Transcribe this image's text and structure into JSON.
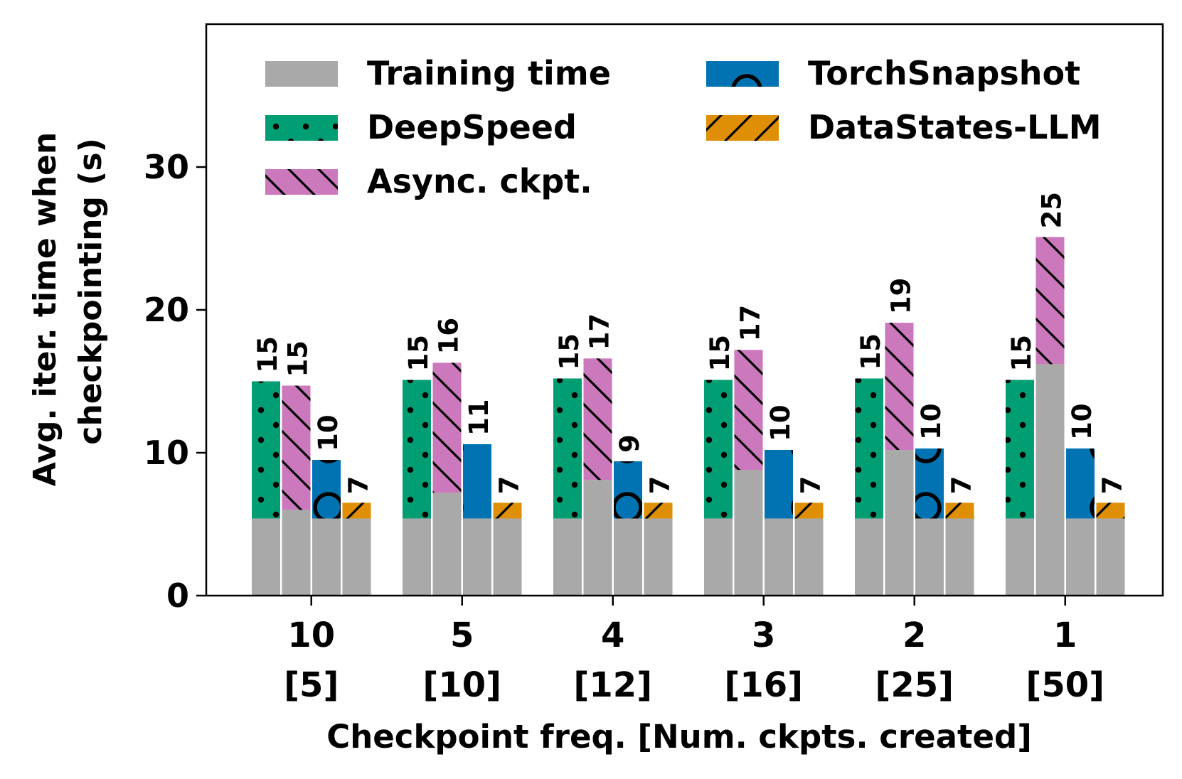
{
  "chart_data": {
    "type": "bar",
    "xlabel": "Checkpoint freq. [Num. ckpts. created]",
    "ylabel_line1": "Avg. iter. time when",
    "ylabel_line2": "checkpointing (s)",
    "ylim": [
      0,
      40
    ],
    "yticks": [
      "0",
      "10",
      "20",
      "30"
    ],
    "categories": [
      {
        "freq": "10",
        "ckpts": "[5]"
      },
      {
        "freq": "5",
        "ckpts": "[10]"
      },
      {
        "freq": "4",
        "ckpts": "[12]"
      },
      {
        "freq": "3",
        "ckpts": "[16]"
      },
      {
        "freq": "2",
        "ckpts": "[25]"
      },
      {
        "freq": "1",
        "ckpts": "[50]"
      }
    ],
    "series": [
      {
        "name": "DeepSpeed",
        "color": "#029e73",
        "pattern": "dots",
        "training": [
          5.4,
          5.4,
          5.4,
          5.4,
          5.4,
          5.4
        ],
        "total": [
          15.0,
          15.1,
          15.2,
          15.1,
          15.2,
          15.1
        ],
        "labels": [
          "15",
          "15",
          "15",
          "15",
          "15",
          "15"
        ]
      },
      {
        "name": "Async. ckpt.",
        "color": "#cc78bc",
        "pattern": "backslash",
        "training": [
          6.0,
          7.2,
          8.1,
          8.8,
          10.2,
          16.2
        ],
        "total": [
          14.7,
          16.3,
          16.6,
          17.2,
          19.1,
          25.1
        ],
        "labels": [
          "15",
          "16",
          "17",
          "17",
          "19",
          "25"
        ]
      },
      {
        "name": "TorchSnapshot",
        "color": "#0173b2",
        "pattern": "circles",
        "training": [
          5.4,
          5.4,
          5.4,
          5.4,
          5.4,
          5.4
        ],
        "total": [
          9.5,
          10.6,
          9.4,
          10.2,
          10.3,
          10.3
        ],
        "labels": [
          "10",
          "11",
          "9",
          "10",
          "10",
          "10"
        ]
      },
      {
        "name": "DataStates-LLM",
        "color": "#de8f05",
        "pattern": "slash",
        "training": [
          5.4,
          5.4,
          5.4,
          5.4,
          5.4,
          5.4
        ],
        "total": [
          6.5,
          6.5,
          6.5,
          6.5,
          6.5,
          6.5
        ],
        "labels": [
          "7",
          "7",
          "7",
          "7",
          "7",
          "7"
        ]
      }
    ],
    "training_series": {
      "name": "Training time",
      "color": "#a9a9a9"
    },
    "legend": {
      "placement": "top",
      "entries": [
        "Training time",
        "DeepSpeed",
        "Async. ckpt.",
        "TorchSnapshot",
        "DataStates-LLM"
      ]
    }
  }
}
